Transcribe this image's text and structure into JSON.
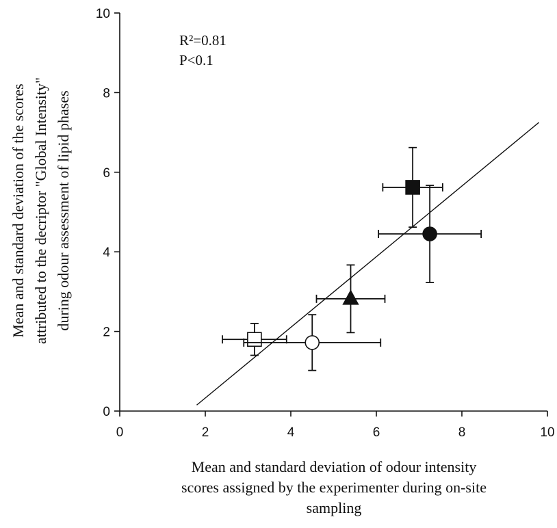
{
  "chart_data": {
    "type": "scatter",
    "title": "",
    "xlabel_lines": [
      "Mean and standard deviation of odour intensity",
      "scores assigned by the experimenter during on-site",
      "sampling"
    ],
    "ylabel_lines": [
      "Mean and standard deviation of the scores",
      "attributed to the decriptor \"Global Intensity\"",
      "during odour assessment of lipid phases"
    ],
    "xlim": [
      0,
      10
    ],
    "ylim": [
      0,
      10
    ],
    "xticks": [
      0,
      2,
      4,
      6,
      8,
      10
    ],
    "yticks": [
      0,
      2,
      4,
      6,
      8,
      10
    ],
    "grid": false,
    "annotations": [
      "R²=0.81",
      "P<0.1"
    ],
    "regression_line": {
      "x": [
        1.8,
        9.8
      ],
      "y": [
        0.15,
        7.25
      ]
    },
    "points": [
      {
        "marker": "open-square",
        "x": 3.15,
        "y": 1.8,
        "xerr": 0.75,
        "yerr": 0.4
      },
      {
        "marker": "open-circle",
        "x": 4.5,
        "y": 1.72,
        "xerr": 1.6,
        "yerr": 0.7
      },
      {
        "marker": "filled-triangle",
        "x": 5.4,
        "y": 2.82,
        "xerr": 0.8,
        "yerr": 0.85
      },
      {
        "marker": "filled-square",
        "x": 6.85,
        "y": 5.62,
        "xerr": 0.7,
        "yerr": 1.0
      },
      {
        "marker": "filled-circle",
        "x": 7.25,
        "y": 4.45,
        "xerr": 1.2,
        "yerr": 1.22
      }
    ]
  }
}
